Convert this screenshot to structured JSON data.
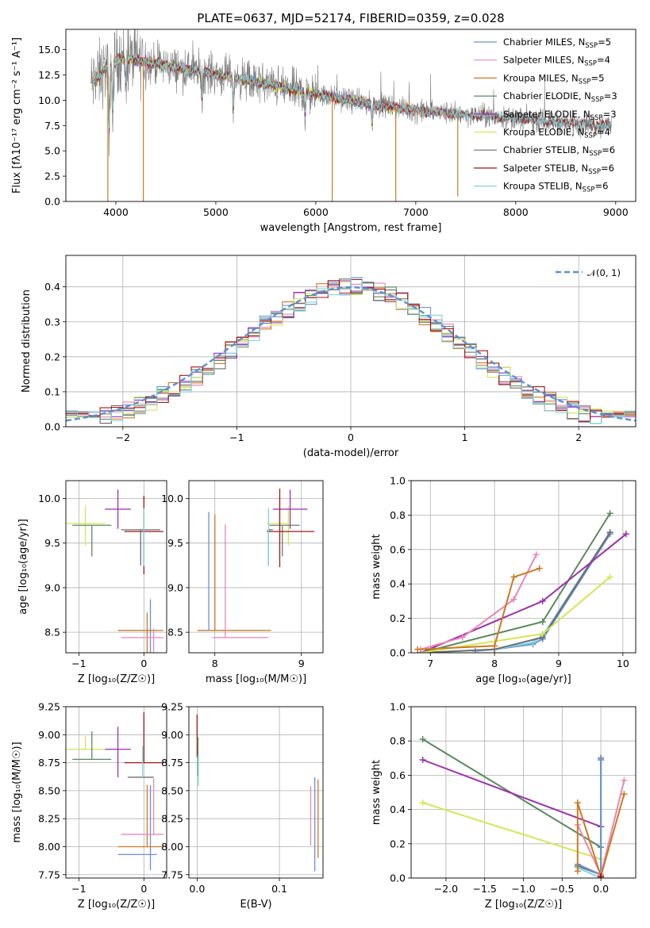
{
  "colors": {
    "Chabrier MILES": "#6a8fdc",
    "Salpeter MILES": "#e986b8",
    "Kroupa MILES": "#cc7a22",
    "Chabrier ELODIE": "#5a8a5e",
    "Salpeter ELODIE": "#9b2fae",
    "Kroupa ELODIE": "#d4e654",
    "Chabrier STELIB": "#6e6e6e",
    "Salpeter STELIB": "#a31515",
    "Kroupa STELIB": "#7fd6dc",
    "gauss": "#5b8fd6"
  },
  "chart_data": [
    {
      "id": "spectrum",
      "type": "line",
      "title": "PLATE=0637, MJD=52174, FIBERID=0359, z=0.028",
      "xlabel": "wavelength [Angstrom, rest frame]",
      "ylabel": "Flux [fλ10⁻¹⁷ erg cm⁻² s⁻¹ A⁻¹]",
      "xlim": [
        3500,
        9200
      ],
      "ylim": [
        0,
        17
      ],
      "xticks": [
        4000,
        5000,
        6000,
        7000,
        8000,
        9000
      ],
      "yticks": [
        0.0,
        2.5,
        5.0,
        7.5,
        10.0,
        12.5,
        15.0
      ],
      "grid": false,
      "legend_position": "top-right",
      "spectrum": {
        "x_range": [
          3750,
          8960
        ],
        "anchors": [
          [
            3750,
            11.5
          ],
          [
            3900,
            13.2
          ],
          [
            4050,
            14.2
          ],
          [
            4300,
            13.8
          ],
          [
            4600,
            13.2
          ],
          [
            5000,
            12.6
          ],
          [
            5500,
            11.6
          ],
          [
            6000,
            10.6
          ],
          [
            6500,
            9.7
          ],
          [
            7000,
            9.0
          ],
          [
            7500,
            8.6
          ],
          [
            8000,
            8.2
          ],
          [
            8500,
            7.8
          ],
          [
            8960,
            7.5
          ]
        ],
        "absorption_lines": [
          [
            3933,
            8.0
          ],
          [
            3968,
            6.0
          ],
          [
            4101,
            3.0
          ],
          [
            4861,
            3.5
          ],
          [
            5175,
            3.5
          ],
          [
            5893,
            3.0
          ],
          [
            6563,
            2.5
          ]
        ]
      },
      "series": [
        {
          "label": "Chabrier MILES, N",
          "sub": "SSP",
          "suffix": "=5",
          "x_end": 7430
        },
        {
          "label": "Salpeter MILES, N",
          "sub": "SSP",
          "suffix": "=4",
          "x_end": 7430
        },
        {
          "label": "Kroupa MILES, N",
          "sub": "SSP",
          "suffix": "=5",
          "x_end": 7430
        },
        {
          "label": "Chabrier ELODIE, N",
          "sub": "SSP",
          "suffix": "=3",
          "x_end": 6800
        },
        {
          "label": "Salpeter ELODIE, N",
          "sub": "SSP",
          "suffix": "=3",
          "x_end": 6800
        },
        {
          "label": "Kroupa ELODIE, N",
          "sub": "SSP",
          "suffix": "=4",
          "x_end": 6800
        },
        {
          "label": "Chabrier STELIB, N",
          "sub": "SSP",
          "suffix": "=6",
          "x_end": 8960
        },
        {
          "label": "Salpeter STELIB, N",
          "sub": "SSP",
          "suffix": "=6",
          "x_end": 8960
        },
        {
          "label": "Kroupa STELIB, N",
          "sub": "SSP",
          "suffix": "=6",
          "x_end": 8960
        }
      ],
      "spikes": [
        [
          3920,
          0
        ],
        [
          4275,
          0
        ],
        [
          6165,
          0
        ],
        [
          6800,
          0
        ],
        [
          7420,
          0.5
        ]
      ]
    },
    {
      "id": "residuals",
      "type": "bar",
      "xlabel": "(data-model)/error",
      "ylabel": "Normed distribution",
      "xlim": [
        -2.5,
        2.5
      ],
      "ylim": [
        0,
        0.49
      ],
      "xticks": [
        -2,
        -1,
        0,
        1,
        2
      ],
      "yticks": [
        0.0,
        0.1,
        0.2,
        0.3,
        0.4
      ],
      "grid": true,
      "legend_position": "top-right",
      "legend": "𝒩(0, 1)",
      "bin_width": 0.1,
      "bin_start": -2.5
    },
    {
      "id": "age-vs-Z",
      "type": "scatter",
      "xlabel": "Z [log₁₀(Z/Z☉)]",
      "ylabel": "age  [log₁₀(age/yr)]",
      "xlim": [
        -1.2,
        0.35
      ],
      "ylim": [
        8.27,
        10.2
      ],
      "xticks": [
        -1,
        0
      ],
      "yticks": [
        8.5,
        9.0,
        9.5,
        10.0
      ],
      "grid": true,
      "points": [
        {
          "s": "Kroupa ELODIE",
          "x": -0.9,
          "y": 9.72,
          "xe": [
            0.3,
            0.3
          ],
          "ye": [
            0.25,
            0.2
          ]
        },
        {
          "s": "Chabrier ELODIE",
          "x": -0.8,
          "y": 9.7,
          "xe": [
            0.3,
            0.3
          ],
          "ye": [
            0.35,
            0.0
          ]
        },
        {
          "s": "Salpeter ELODIE",
          "x": -0.4,
          "y": 9.88,
          "xe": [
            0.2,
            0.2
          ],
          "ye": [
            0.22,
            0.22
          ]
        },
        {
          "s": "Salpeter STELIB",
          "x": 0.0,
          "y": 9.63,
          "xe": [
            0.3,
            0.3
          ],
          "ye": [
            0.48,
            0.4
          ]
        },
        {
          "s": "Chabrier STELIB",
          "x": -0.05,
          "y": 9.65,
          "xe": [
            0.3,
            0.3
          ],
          "ye": [
            0.4,
            0.0
          ]
        },
        {
          "s": "Kroupa STELIB",
          "x": 0.0,
          "y": 9.64,
          "xe": [
            0.02,
            0.02
          ],
          "ye": [
            0.4,
            0.25
          ]
        },
        {
          "s": "Chabrier MILES",
          "x": 0.1,
          "y": 8.52,
          "xe": [
            0.5,
            0.1
          ],
          "ye": [
            1.15,
            0.35
          ]
        },
        {
          "s": "Kroupa MILES",
          "x": 0.05,
          "y": 8.52,
          "xe": [
            0.45,
            0.25
          ],
          "ye": [
            1.5,
            0.2
          ]
        },
        {
          "s": "Salpeter MILES",
          "x": 0.15,
          "y": 8.44,
          "xe": [
            0.5,
            0.15
          ],
          "ye": [
            1.3,
            0.1
          ]
        }
      ]
    },
    {
      "id": "age-vs-mass",
      "type": "scatter",
      "xlabel": "mass [log₁₀(M/M☉)]",
      "ylabel": "",
      "xlim": [
        7.7,
        9.25
      ],
      "ylim": [
        8.27,
        10.2
      ],
      "xticks": [
        8,
        9
      ],
      "yticks": [
        8.5,
        9.0,
        9.5,
        10.0
      ],
      "grid": true,
      "points": [
        {
          "s": "Kroupa ELODIE",
          "x": 8.85,
          "y": 9.72,
          "xe": [
            0.25,
            0.0
          ],
          "ye": [
            0.25,
            0.2
          ]
        },
        {
          "s": "Chabrier ELODIE",
          "x": 8.78,
          "y": 9.7,
          "xe": [
            0.15,
            0.2
          ],
          "ye": [
            0.35,
            0.0
          ]
        },
        {
          "s": "Salpeter ELODIE",
          "x": 8.87,
          "y": 9.88,
          "xe": [
            0.2,
            0.2
          ],
          "ye": [
            0.22,
            0.22
          ]
        },
        {
          "s": "Salpeter STELIB",
          "x": 8.75,
          "y": 9.63,
          "xe": [
            0.15,
            0.4
          ],
          "ye": [
            0.4,
            0.48
          ]
        },
        {
          "s": "Chabrier STELIB",
          "x": 8.62,
          "y": 9.65,
          "xe": [
            0.0,
            0.05
          ],
          "ye": [
            0.4,
            0.0
          ]
        },
        {
          "s": "Kroupa STELIB",
          "x": 8.62,
          "y": 9.64,
          "xe": [
            0.02,
            0.02
          ],
          "ye": [
            0.4,
            0.25
          ]
        },
        {
          "s": "Chabrier MILES",
          "x": 7.93,
          "y": 8.52,
          "xe": [
            0.13,
            0.65
          ],
          "ye": [
            0.0,
            1.33
          ]
        },
        {
          "s": "Kroupa MILES",
          "x": 8.0,
          "y": 8.52,
          "xe": [
            0.2,
            0.65
          ],
          "ye": [
            0.0,
            1.3
          ]
        },
        {
          "s": "Salpeter MILES",
          "x": 8.12,
          "y": 8.44,
          "xe": [
            0.15,
            0.5
          ],
          "ye": [
            0.0,
            1.27
          ]
        }
      ]
    },
    {
      "id": "mw-vs-age",
      "type": "line",
      "xlabel": "age  [log₁₀(age/yr)]",
      "ylabel": "mass weight",
      "xlim": [
        6.7,
        10.2
      ],
      "ylim": [
        0,
        1
      ],
      "xticks": [
        7,
        8,
        9,
        10
      ],
      "yticks": [
        0.0,
        0.2,
        0.4,
        0.6,
        0.8,
        1.0
      ],
      "grid": true,
      "series": [
        {
          "s": "Chabrier MILES",
          "x": [
            7.7,
            8.0,
            8.6,
            8.75,
            9.8
          ],
          "y": [
            0.01,
            0.02,
            0.05,
            0.08,
            0.69
          ]
        },
        {
          "s": "Kroupa STELIB",
          "x": [
            6.85,
            8.0,
            8.6,
            8.75,
            9.8
          ],
          "y": [
            0.0,
            0.02,
            0.06,
            0.1,
            0.7
          ]
        },
        {
          "s": "Chabrier STELIB",
          "x": [
            6.85,
            8.0,
            8.75,
            9.8
          ],
          "y": [
            0.0,
            0.02,
            0.09,
            0.7
          ]
        },
        {
          "s": "Chabrier ELODIE",
          "x": [
            6.85,
            8.75,
            9.8
          ],
          "y": [
            0.0,
            0.18,
            0.81
          ]
        },
        {
          "s": "Salpeter ELODIE",
          "x": [
            6.85,
            8.75,
            10.05
          ],
          "y": [
            0.0,
            0.3,
            0.69
          ]
        },
        {
          "s": "Kroupa ELODIE",
          "x": [
            6.85,
            8.75,
            9.8
          ],
          "y": [
            0.0,
            0.11,
            0.44
          ]
        },
        {
          "s": "Salpeter MILES",
          "x": [
            6.85,
            7.5,
            8.3,
            8.65
          ],
          "y": [
            0.02,
            0.09,
            0.31,
            0.57
          ]
        },
        {
          "s": "Kroupa MILES",
          "x": [
            6.8,
            8.0,
            8.3,
            8.7
          ],
          "y": [
            0.02,
            0.04,
            0.44,
            0.49
          ]
        }
      ]
    },
    {
      "id": "mass-vs-Z",
      "type": "scatter",
      "xlabel": "Z [log₁₀(Z/Z☉)]",
      "ylabel": "mass [log₁₀(M/M☉)]",
      "xlim": [
        -1.2,
        0.35
      ],
      "ylim": [
        7.72,
        9.25
      ],
      "xticks": [
        -1,
        0
      ],
      "yticks": [
        7.75,
        8.0,
        8.25,
        8.5,
        8.75,
        9.0,
        9.25
      ],
      "grid": true,
      "points": [
        {
          "s": "Kroupa ELODIE",
          "x": -0.9,
          "y": 8.87,
          "xe": [
            0.3,
            0.3
          ],
          "ye": [
            0.0,
            0.12
          ]
        },
        {
          "s": "Chabrier ELODIE",
          "x": -0.8,
          "y": 8.78,
          "xe": [
            0.3,
            0.3
          ],
          "ye": [
            0.0,
            0.25
          ]
        },
        {
          "s": "Salpeter ELODIE",
          "x": -0.4,
          "y": 8.87,
          "xe": [
            0.2,
            0.2
          ],
          "ye": [
            0.25,
            0.2
          ]
        },
        {
          "s": "Salpeter STELIB",
          "x": 0.0,
          "y": 8.75,
          "xe": [
            0.3,
            0.3
          ],
          "ye": [
            0.0,
            0.45
          ]
        },
        {
          "s": "Chabrier STELIB",
          "x": -0.05,
          "y": 8.62,
          "xe": [
            0.2,
            0.2
          ],
          "ye": [
            0.0,
            0.0
          ]
        },
        {
          "s": "Kroupa STELIB",
          "x": -0.02,
          "y": 8.62,
          "xe": [
            0.0,
            0.0
          ],
          "ye": [
            0.0,
            0.28
          ]
        },
        {
          "s": "Chabrier MILES",
          "x": 0.1,
          "y": 7.93,
          "xe": [
            0.5,
            0.1
          ],
          "ye": [
            0.14,
            0.62
          ]
        },
        {
          "s": "Kroupa MILES",
          "x": 0.05,
          "y": 8.0,
          "xe": [
            0.45,
            0.25
          ],
          "ye": [
            0.0,
            0.55
          ]
        },
        {
          "s": "Salpeter MILES",
          "x": 0.15,
          "y": 8.11,
          "xe": [
            0.5,
            0.15
          ],
          "ye": [
            0.0,
            0.5
          ]
        }
      ]
    },
    {
      "id": "mass-vs-EBV",
      "type": "scatter",
      "xlabel": "E(B-V)",
      "ylabel": "",
      "xlim": [
        -0.01,
        0.153
      ],
      "ylim": [
        7.72,
        9.25
      ],
      "xticks": [
        0.0,
        0.1
      ],
      "yticks": [
        7.75,
        8.0,
        8.25,
        8.5,
        8.75,
        9.0,
        9.25
      ],
      "grid": true,
      "points": [
        {
          "s": "Salpeter STELIB",
          "x": 0.0,
          "y": 9.0,
          "ye": [
            0.2,
            0.18
          ]
        },
        {
          "s": "Kroupa ELODIE",
          "x": 0.001,
          "y": 8.87,
          "ye": [
            0.15,
            0.1
          ]
        },
        {
          "s": "Chabrier ELODIE",
          "x": 0.001,
          "y": 8.78,
          "ye": [
            0.15,
            0.2
          ]
        },
        {
          "s": "Kroupa STELIB",
          "x": 0.0015,
          "y": 8.62,
          "ye": [
            0.08,
            0.2
          ]
        },
        {
          "s": "Salpeter MILES",
          "x": 0.138,
          "y": 8.28,
          "ye": [
            0.27,
            0.26
          ]
        },
        {
          "s": "Chabrier MILES",
          "x": 0.143,
          "y": 8.2,
          "ye": [
            0.42,
            0.42
          ]
        },
        {
          "s": "Kroupa MILES",
          "x": 0.147,
          "y": 8.25,
          "ye": [
            0.35,
            0.35
          ]
        }
      ]
    },
    {
      "id": "mw-vs-Z",
      "type": "line",
      "xlabel": "Z [log₁₀(Z/Z☉)]",
      "ylabel": "mass weight",
      "xlim": [
        -2.45,
        0.45
      ],
      "ylim": [
        0,
        1
      ],
      "xticks": [
        -2.0,
        -1.5,
        -1.0,
        -0.5,
        0.0
      ],
      "yticks": [
        0.0,
        0.2,
        0.4,
        0.6,
        0.8,
        1.0
      ],
      "grid": true,
      "series": [
        {
          "s": "Chabrier ELODIE",
          "x": [
            -2.3,
            0.0
          ],
          "y": [
            0.81,
            0.18
          ]
        },
        {
          "s": "Salpeter ELODIE",
          "x": [
            -2.3,
            0.0
          ],
          "y": [
            0.69,
            0.3
          ]
        },
        {
          "s": "Kroupa ELODIE",
          "x": [
            -2.3,
            0.0
          ],
          "y": [
            0.44,
            0.11
          ]
        },
        {
          "s": "Chabrier STELIB",
          "x": [
            -0.3,
            0.0,
            0.0
          ],
          "y": [
            0.07,
            0.02,
            0.7
          ]
        },
        {
          "s": "Kroupa STELIB",
          "x": [
            -0.3,
            0.0,
            0.0
          ],
          "y": [
            0.06,
            0.0,
            0.69
          ]
        },
        {
          "s": "Chabrier MILES",
          "x": [
            -0.3,
            0.0,
            0.0
          ],
          "y": [
            0.08,
            0.02,
            0.69
          ]
        },
        {
          "s": "Salpeter MILES",
          "x": [
            -0.3,
            0.0,
            0.3
          ],
          "y": [
            0.31,
            0.02,
            0.57
          ]
        },
        {
          "s": "Kroupa MILES",
          "x": [
            -0.3,
            -0.3,
            0.0,
            0.3
          ],
          "y": [
            0.04,
            0.44,
            0.01,
            0.49
          ]
        },
        {
          "s": "Salpeter STELIB",
          "x": [
            0.0,
            0.0
          ],
          "y": [
            0.0,
            0.01
          ]
        }
      ]
    }
  ]
}
